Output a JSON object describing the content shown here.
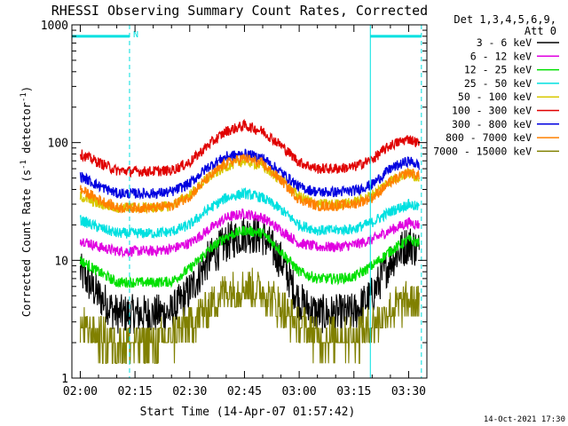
{
  "chart_data": {
    "type": "line",
    "title": "RHESSI Observing Summary Count Rates, Corrected",
    "xlabel": "Start Time (14-Apr-07 01:57:42)",
    "ylabel_main": "Corrected Count Rate (s",
    "ylabel_sup1": "-1",
    "ylabel_mid": " detector",
    "ylabel_sup2": "-1",
    "ylabel_end": ")",
    "yscale": "log",
    "ylim": [
      1,
      1000
    ],
    "xlim_minutes": [
      -2.3,
      95.0
    ],
    "x_tick_labels": [
      "02:00",
      "02:15",
      "02:30",
      "02:45",
      "03:00",
      "03:15",
      "03:30"
    ],
    "x_tick_minutes": [
      0,
      15,
      30,
      45,
      60,
      75,
      90
    ],
    "y_tick_labels": [
      "1",
      "10",
      "100",
      "1000"
    ],
    "y_tick_values": [
      1,
      10,
      100,
      1000
    ],
    "x_minutes": [
      0,
      5,
      10,
      15,
      20,
      25,
      30,
      35,
      40,
      45,
      50,
      55,
      60,
      65,
      70,
      75,
      80,
      85,
      90,
      93
    ],
    "legend_header_1": "Det 1,3,4,5,6,9,",
    "legend_header_2": "Att 0",
    "legend_position": "right",
    "series": [
      {
        "name": "3 - 6 keV",
        "color": "#000000",
        "values": [
          8,
          5,
          3.5,
          3.5,
          3.5,
          3.6,
          5.5,
          10,
          14,
          17,
          16,
          10,
          4.5,
          3.5,
          3.5,
          3.6,
          5,
          10,
          14,
          12
        ]
      },
      {
        "name": "6 - 12 keV",
        "color": "#e000e0",
        "values": [
          15,
          13,
          12,
          12,
          12,
          12.5,
          14,
          18,
          23,
          25,
          23,
          18,
          14,
          13,
          13,
          13.5,
          15,
          18,
          21,
          20
        ]
      },
      {
        "name": "12 - 25 keV",
        "color": "#00e000",
        "values": [
          10,
          8,
          6.5,
          6.5,
          6.5,
          6.6,
          8.5,
          12,
          16,
          18,
          17,
          12,
          8,
          7,
          7,
          7.2,
          9,
          12,
          15,
          14
        ]
      },
      {
        "name": "25 - 50 keV",
        "color": "#00e0e0",
        "values": [
          22,
          19,
          17,
          17,
          17,
          17.5,
          20,
          27,
          34,
          37,
          34,
          27,
          20,
          18,
          18,
          18.5,
          21,
          26,
          30,
          28
        ]
      },
      {
        "name": "50 - 100 keV",
        "color": "#d8c800",
        "values": [
          35,
          30,
          28,
          28,
          28,
          29,
          36,
          50,
          63,
          70,
          63,
          48,
          35,
          30,
          30,
          31,
          36,
          48,
          55,
          50
        ]
      },
      {
        "name": "100 - 300 keV",
        "color": "#e00000",
        "values": [
          80,
          68,
          58,
          57,
          57,
          58,
          68,
          95,
          125,
          140,
          125,
          95,
          68,
          60,
          60,
          62,
          72,
          95,
          108,
          98
        ]
      },
      {
        "name": "300 - 800 keV",
        "color": "#0000e0",
        "values": [
          52,
          43,
          37,
          37,
          37,
          38,
          45,
          62,
          76,
          80,
          74,
          56,
          42,
          38,
          38,
          39,
          44,
          60,
          70,
          64
        ]
      },
      {
        "name": "800 - 7000 keV",
        "color": "#ff8000",
        "values": [
          40,
          33,
          28,
          28,
          28,
          29,
          35,
          50,
          67,
          74,
          66,
          48,
          33,
          29,
          29,
          30,
          34,
          46,
          56,
          52
        ]
      },
      {
        "name": "7000 - 15000 keV",
        "color": "#808000",
        "values": [
          2.7,
          2.2,
          2,
          2,
          2,
          2.2,
          2.8,
          4,
          5.5,
          6,
          5.5,
          4,
          2.8,
          2.3,
          2.2,
          2.3,
          2.7,
          3.8,
          4.5,
          4.2
        ]
      }
    ],
    "interval_markers": [
      {
        "label": "N",
        "start_minute": 13.5,
        "end_minute": null,
        "bar_value": 800
      },
      {
        "label": "",
        "start_minute": 79.5,
        "end_minute": 93.5,
        "bar_value": 800
      }
    ],
    "timestamp": "14-Oct-2021 17:30"
  }
}
